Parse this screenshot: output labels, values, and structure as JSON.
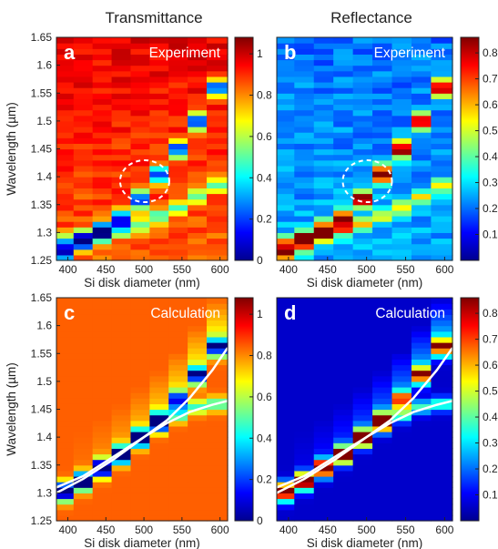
{
  "figure": {
    "col_titles": [
      "Transmittance",
      "Reflectance"
    ]
  },
  "chart_data": [
    {
      "id": "a",
      "type": "heatmap",
      "panel_label": "a",
      "title": "Experiment",
      "ylabel": "Wavelength (µm)",
      "xlabel": "Si disk diameter (nm)",
      "xlim": [
        385,
        610
      ],
      "ylim": [
        1.25,
        1.65
      ],
      "xticks": [
        "400",
        "450",
        "500",
        "550",
        "600"
      ],
      "yticks": [
        "1.25",
        "1.3",
        "1.35",
        "1.4",
        "1.45",
        "1.5",
        "1.55",
        "1.6",
        "1.65"
      ],
      "colorbar": {
        "min": 0,
        "max": 1.08,
        "ticks": [
          "0",
          "0.2",
          "0.4",
          "0.6",
          "0.8",
          "1"
        ]
      },
      "diameters": [
        395,
        420,
        445,
        470,
        495,
        520,
        545,
        570,
        595
      ],
      "mode_upper": [
        1.265,
        1.285,
        1.305,
        1.325,
        1.36,
        1.405,
        1.45,
        1.5,
        1.56
      ],
      "mode_lower": [
        1.285,
        1.29,
        1.295,
        1.305,
        1.315,
        1.33,
        1.345,
        1.365,
        1.385
      ],
      "annotation": "dashed ellipse around 500 nm, 1.39 µm"
    },
    {
      "id": "b",
      "type": "heatmap",
      "panel_label": "b",
      "title": "Experiment",
      "xlabel": "Si disk diameter (nm)",
      "xlim": [
        385,
        610
      ],
      "ylim": [
        1.25,
        1.65
      ],
      "xticks": [
        "400",
        "450",
        "500",
        "550",
        "600"
      ],
      "colorbar": {
        "min": 0,
        "max": 0.86,
        "ticks": [
          "0.1",
          "0.2",
          "0.3",
          "0.4",
          "0.5",
          "0.6",
          "0.7",
          "0.8"
        ]
      },
      "diameters": [
        395,
        420,
        445,
        470,
        495,
        520,
        545,
        570,
        595
      ],
      "mode_upper": [
        1.265,
        1.285,
        1.305,
        1.325,
        1.36,
        1.405,
        1.45,
        1.5,
        1.56
      ],
      "mode_lower": [
        1.285,
        1.29,
        1.295,
        1.305,
        1.315,
        1.33,
        1.345,
        1.365,
        1.385
      ],
      "annotation": "dashed ellipse around 500 nm, 1.39 µm"
    },
    {
      "id": "c",
      "type": "heatmap",
      "panel_label": "c",
      "title": "Calculation",
      "ylabel": "Wavelength (µm)",
      "xlabel": "Si disk diameter (nm)",
      "xlim": [
        385,
        610
      ],
      "ylim": [
        1.25,
        1.65
      ],
      "xticks": [
        "400",
        "450",
        "500",
        "550",
        "600"
      ],
      "yticks": [
        "1.25",
        "1.3",
        "1.35",
        "1.4",
        "1.45",
        "1.5",
        "1.55",
        "1.6",
        "1.65"
      ],
      "colorbar": {
        "min": 0,
        "max": 1.08,
        "ticks": [
          "0",
          "0.2",
          "0.4",
          "0.6",
          "0.8",
          "1"
        ]
      },
      "diameters": [
        395,
        420,
        445,
        470,
        495,
        520,
        545,
        570,
        595
      ],
      "mode_upper": [
        1.3,
        1.32,
        1.345,
        1.37,
        1.4,
        1.43,
        1.465,
        1.51,
        1.56
      ],
      "mode_lower": [
        1.31,
        1.325,
        1.345,
        1.365,
        1.395,
        1.42,
        1.44,
        1.455,
        1.46
      ],
      "curves": [
        {
          "x": [
            385,
            420,
            460,
            500,
            530,
            560,
            590,
            610
          ],
          "y": [
            1.3,
            1.325,
            1.36,
            1.4,
            1.43,
            1.47,
            1.52,
            1.56
          ]
        },
        {
          "x": [
            385,
            420,
            460,
            500,
            530,
            560,
            590,
            610
          ],
          "y": [
            1.31,
            1.33,
            1.365,
            1.4,
            1.425,
            1.445,
            1.458,
            1.465
          ]
        }
      ]
    },
    {
      "id": "d",
      "type": "heatmap",
      "panel_label": "d",
      "title": "Calculation",
      "xlabel": "Si disk diameter (nm)",
      "xlim": [
        385,
        610
      ],
      "ylim": [
        1.25,
        1.65
      ],
      "xticks": [
        "400",
        "450",
        "500",
        "550",
        "600"
      ],
      "colorbar": {
        "min": 0,
        "max": 0.86,
        "ticks": [
          "0.1",
          "0.2",
          "0.3",
          "0.4",
          "0.5",
          "0.6",
          "0.7",
          "0.8"
        ]
      },
      "diameters": [
        395,
        420,
        445,
        470,
        495,
        520,
        545,
        570,
        595
      ],
      "mode_upper": [
        1.3,
        1.32,
        1.345,
        1.37,
        1.4,
        1.43,
        1.465,
        1.51,
        1.56
      ],
      "mode_lower": [
        1.31,
        1.325,
        1.345,
        1.365,
        1.395,
        1.42,
        1.44,
        1.455,
        1.46
      ],
      "curves": [
        {
          "x": [
            385,
            420,
            460,
            500,
            530,
            560,
            590,
            610
          ],
          "y": [
            1.3,
            1.325,
            1.36,
            1.4,
            1.43,
            1.47,
            1.52,
            1.56
          ]
        },
        {
          "x": [
            385,
            420,
            460,
            500,
            530,
            560,
            590,
            610
          ],
          "y": [
            1.31,
            1.33,
            1.365,
            1.4,
            1.425,
            1.445,
            1.458,
            1.465
          ]
        }
      ]
    }
  ]
}
